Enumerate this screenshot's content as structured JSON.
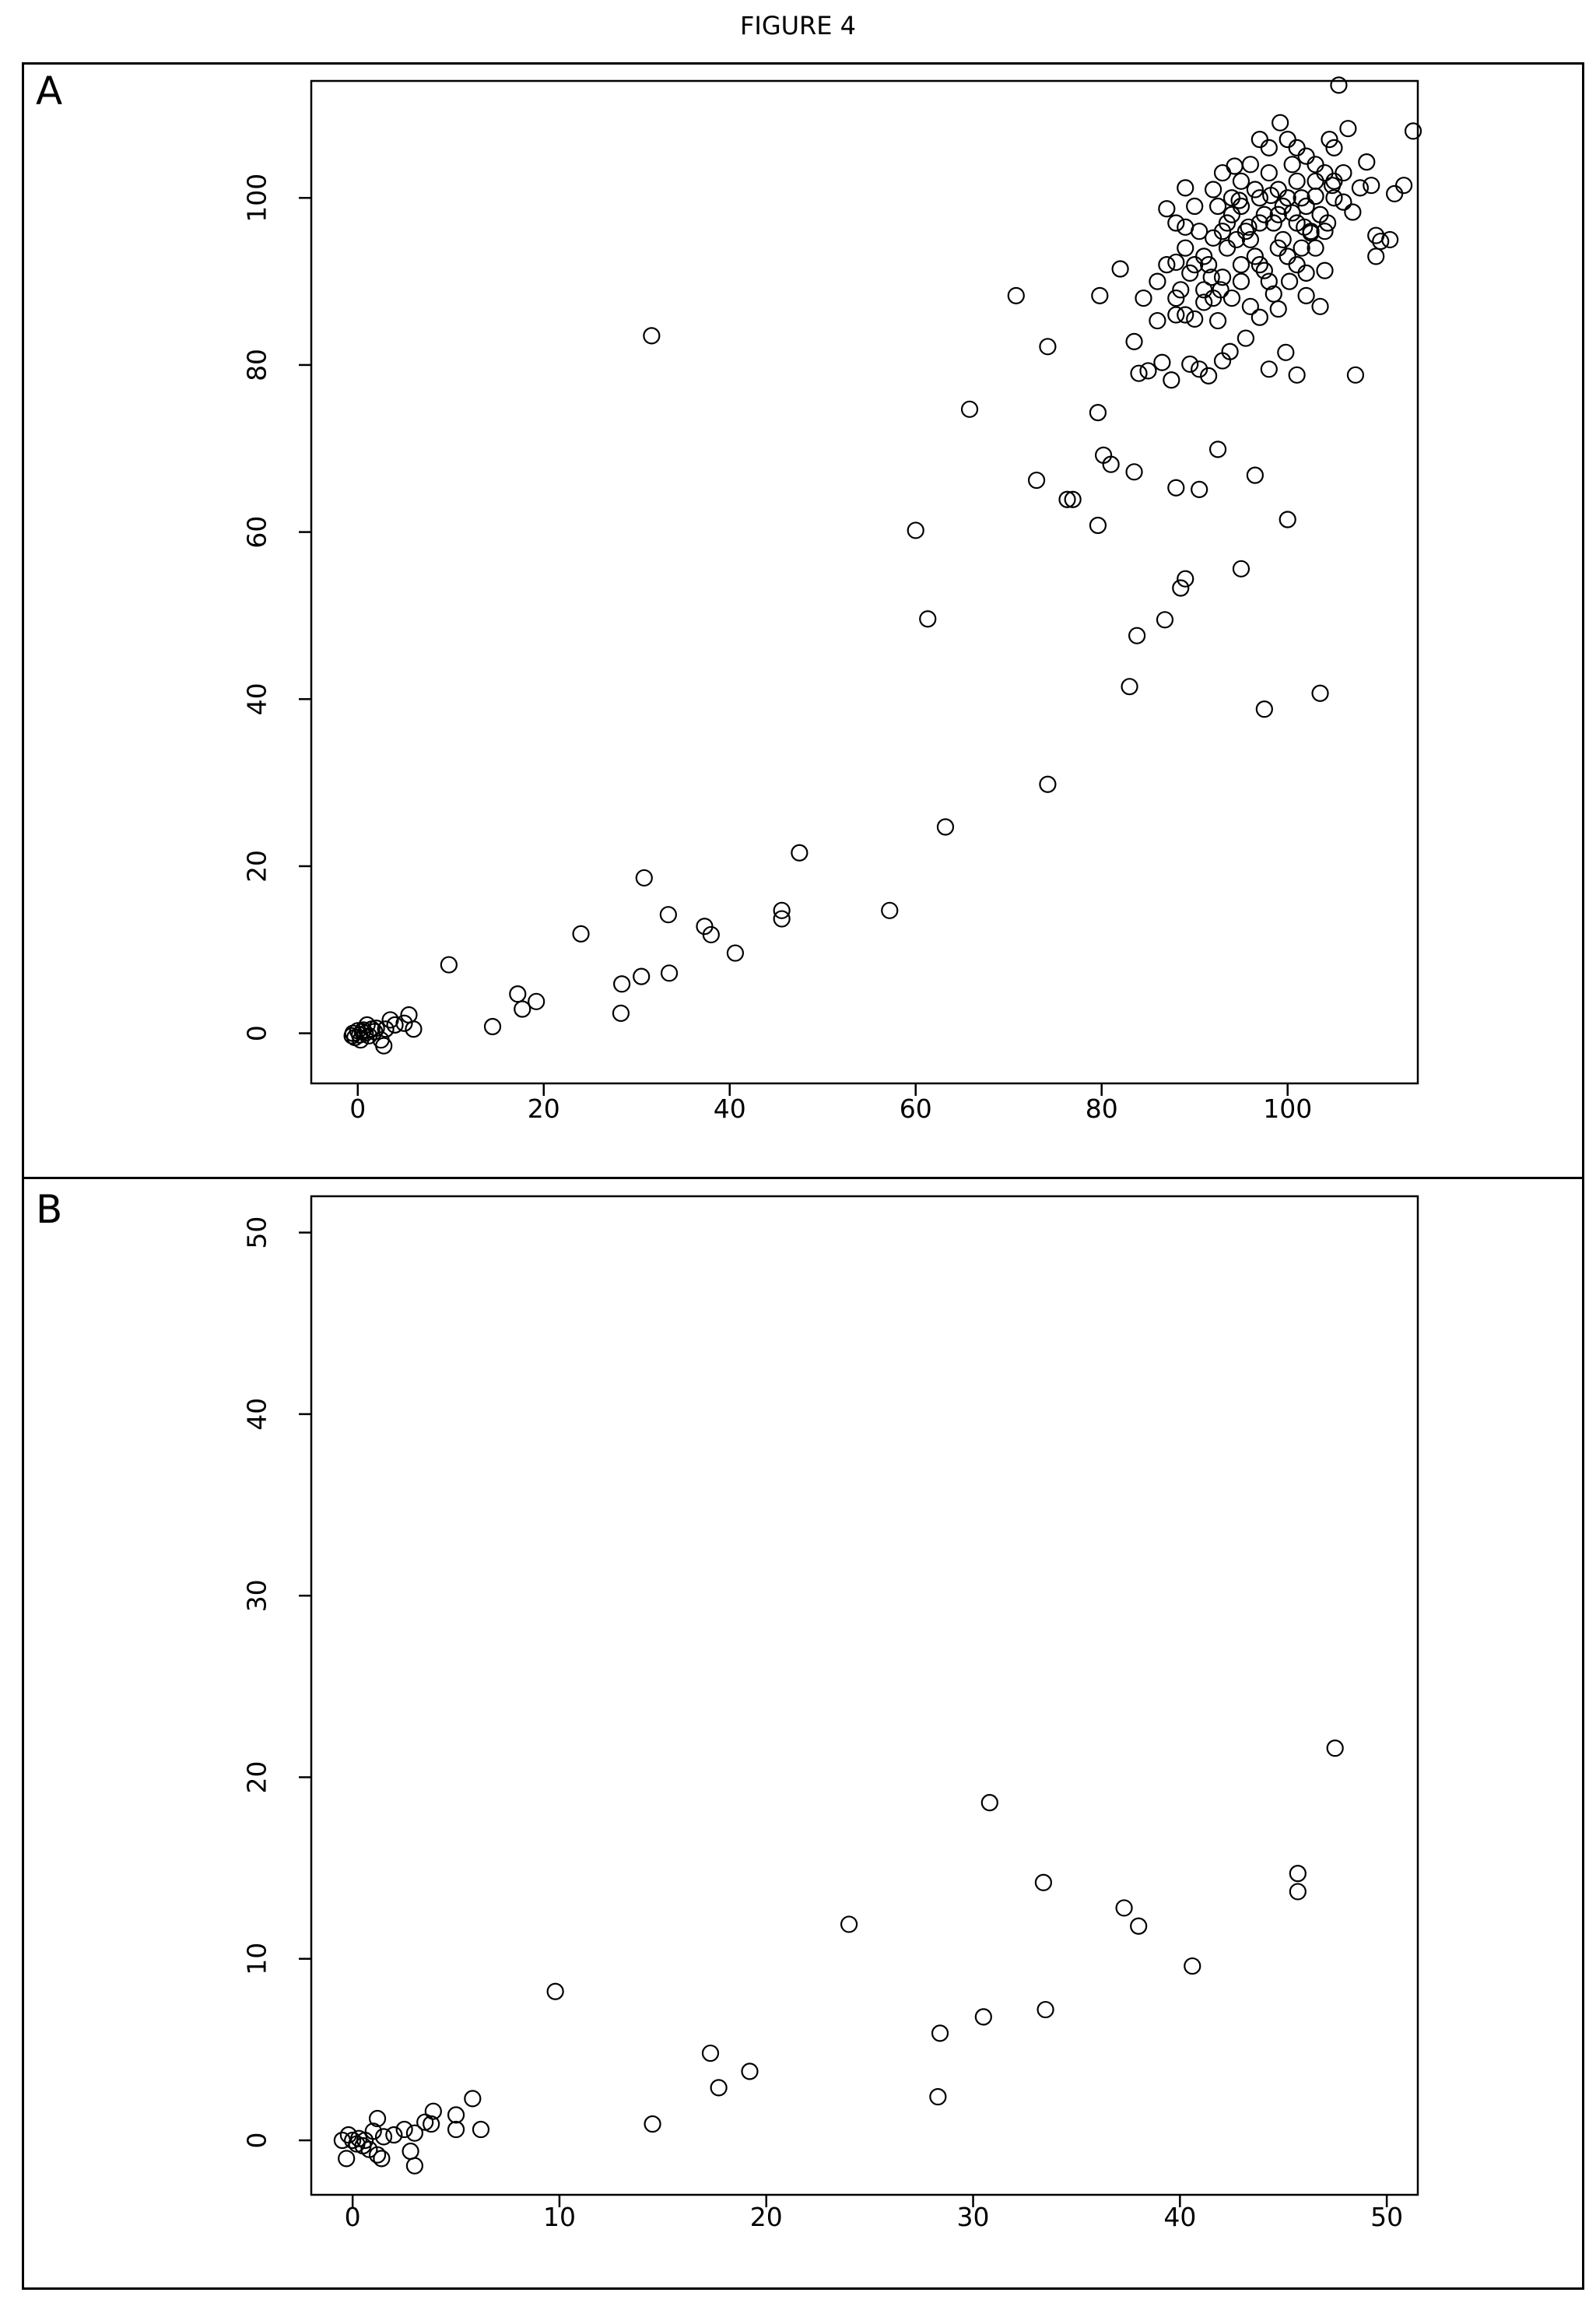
{
  "figure_title": "FIGURE 4",
  "panels": [
    {
      "label": "A"
    },
    {
      "label": "B"
    }
  ],
  "chart_data": [
    {
      "type": "scatter",
      "title": "",
      "xlabel": "",
      "ylabel": "",
      "xlim": [
        -5,
        114
      ],
      "ylim": [
        -6,
        114
      ],
      "xticks": [
        0,
        20,
        40,
        60,
        80,
        100
      ],
      "yticks": [
        0,
        20,
        40,
        60,
        80,
        100
      ],
      "grid": false,
      "points": [
        [
          -0.5,
          0
        ],
        [
          0,
          0.3
        ],
        [
          0.2,
          -0.2
        ],
        [
          -0.3,
          -0.5
        ],
        [
          0.5,
          0.2
        ],
        [
          0.8,
          0
        ],
        [
          1,
          1
        ],
        [
          1.2,
          -0.3
        ],
        [
          1.5,
          0.5
        ],
        [
          0.3,
          -0.8
        ],
        [
          -0.6,
          -0.3
        ],
        [
          2,
          0.6
        ],
        [
          2.5,
          -0.8
        ],
        [
          2.8,
          -1.5
        ],
        [
          3,
          0.5
        ],
        [
          3.5,
          1.6
        ],
        [
          4,
          1
        ],
        [
          5,
          1.2
        ],
        [
          5.5,
          2.2
        ],
        [
          6,
          0.5
        ],
        [
          0.6,
          0.4
        ],
        [
          1.8,
          0.2
        ],
        [
          9.8,
          8.2
        ],
        [
          14.5,
          0.8
        ],
        [
          17.2,
          4.7
        ],
        [
          17.7,
          2.9
        ],
        [
          19.2,
          3.8
        ],
        [
          24,
          11.9
        ],
        [
          28.4,
          5.9
        ],
        [
          28.3,
          2.4
        ],
        [
          30.5,
          6.8
        ],
        [
          30.8,
          18.6
        ],
        [
          33.4,
          14.2
        ],
        [
          33.5,
          7.2
        ],
        [
          37.3,
          12.8
        ],
        [
          38,
          11.8
        ],
        [
          40.6,
          9.6
        ],
        [
          45.6,
          14.7
        ],
        [
          45.6,
          13.7
        ],
        [
          47.5,
          21.6
        ],
        [
          31.6,
          83.5
        ],
        [
          57.2,
          14.7
        ],
        [
          60,
          60.2
        ],
        [
          61.3,
          49.6
        ],
        [
          63.2,
          24.7
        ],
        [
          65.8,
          74.7
        ],
        [
          70.8,
          88.3
        ],
        [
          73,
          66.2
        ],
        [
          74.2,
          82.2
        ],
        [
          74.2,
          29.8
        ],
        [
          76.3,
          63.9
        ],
        [
          76.9,
          63.9
        ],
        [
          79.6,
          74.3
        ],
        [
          79.6,
          60.8
        ],
        [
          79.8,
          88.3
        ],
        [
          80.2,
          69.2
        ],
        [
          81,
          68.1
        ],
        [
          82,
          91.5
        ],
        [
          83,
          41.5
        ],
        [
          83.5,
          67.2
        ],
        [
          83.8,
          47.6
        ],
        [
          86.8,
          49.5
        ],
        [
          88,
          65.3
        ],
        [
          88.5,
          53.3
        ],
        [
          89,
          54.4
        ],
        [
          90.5,
          65.1
        ],
        [
          92.5,
          69.9
        ],
        [
          95,
          55.6
        ],
        [
          96.5,
          66.8
        ],
        [
          97.5,
          38.8
        ],
        [
          100,
          61.5
        ],
        [
          103.5,
          40.7
        ],
        [
          83.5,
          82.8
        ],
        [
          84,
          79
        ],
        [
          84.5,
          88
        ],
        [
          85,
          79.3
        ],
        [
          86,
          85.3
        ],
        [
          86.5,
          80.3
        ],
        [
          87,
          98.7
        ],
        [
          87.5,
          78.2
        ],
        [
          88,
          92.3
        ],
        [
          88,
          86
        ],
        [
          88.5,
          89
        ],
        [
          89,
          101.2
        ],
        [
          89,
          96.5
        ],
        [
          89.5,
          80.1
        ],
        [
          90,
          85.5
        ],
        [
          90.5,
          79.5
        ],
        [
          91,
          87.5
        ],
        [
          91.5,
          78.7
        ],
        [
          91.8,
          90.5
        ],
        [
          92,
          95.2
        ],
        [
          92.5,
          85.3
        ],
        [
          92.8,
          89
        ],
        [
          93,
          80.5
        ],
        [
          93.5,
          97
        ],
        [
          93.8,
          81.6
        ],
        [
          94,
          88
        ],
        [
          94.3,
          103.8
        ],
        [
          94.8,
          99.7
        ],
        [
          95,
          92
        ],
        [
          95.5,
          83.2
        ],
        [
          95.8,
          96.5
        ],
        [
          96,
          87
        ],
        [
          96.5,
          93
        ],
        [
          97,
          85.7
        ],
        [
          97.5,
          91.3
        ],
        [
          98,
          79.5
        ],
        [
          98.2,
          100.3
        ],
        [
          98.5,
          88.5
        ],
        [
          99,
          86.7
        ],
        [
          99.2,
          109
        ],
        [
          99.5,
          95
        ],
        [
          99.8,
          81.5
        ],
        [
          100.2,
          90
        ],
        [
          100.5,
          98.2
        ],
        [
          101,
          78.8
        ],
        [
          101.5,
          94
        ],
        [
          101.8,
          96.5
        ],
        [
          102,
          88.3
        ],
        [
          102.5,
          95.8
        ],
        [
          103,
          100.2
        ],
        [
          103.5,
          87
        ],
        [
          104,
          91.3
        ],
        [
          104.3,
          97
        ],
        [
          104.8,
          101.5
        ],
        [
          105,
          106
        ],
        [
          105.5,
          113.5
        ],
        [
          106,
          99.5
        ],
        [
          106.5,
          108.3
        ],
        [
          107,
          98.3
        ],
        [
          107.3,
          78.8
        ],
        [
          107.8,
          101.2
        ],
        [
          108.5,
          104.3
        ],
        [
          109,
          101.5
        ],
        [
          109.5,
          95.5
        ],
        [
          109.5,
          93
        ],
        [
          110,
          94.8
        ],
        [
          111,
          95
        ],
        [
          111.5,
          100.5
        ],
        [
          112.5,
          101.5
        ],
        [
          113.5,
          108
        ],
        [
          87,
          92
        ],
        [
          88,
          97
        ],
        [
          89,
          94
        ],
        [
          90,
          99
        ],
        [
          91,
          93
        ],
        [
          92,
          101
        ],
        [
          93,
          96
        ],
        [
          94,
          98
        ],
        [
          95,
          102
        ],
        [
          96,
          95
        ],
        [
          97,
          97
        ],
        [
          98,
          103
        ],
        [
          99,
          98
        ],
        [
          100,
          100
        ],
        [
          101,
          97
        ],
        [
          102,
          99
        ],
        [
          103,
          102
        ],
        [
          104,
          96
        ],
        [
          105,
          100
        ],
        [
          106,
          103
        ],
        [
          90.5,
          96
        ],
        [
          92.5,
          99
        ],
        [
          94.5,
          95
        ],
        [
          96.5,
          101
        ],
        [
          98.5,
          97
        ],
        [
          100.5,
          104
        ],
        [
          102.5,
          96
        ],
        [
          104.5,
          107
        ],
        [
          89.5,
          91
        ],
        [
          91.5,
          92
        ],
        [
          93.5,
          94
        ],
        [
          95.5,
          96
        ],
        [
          97.5,
          98
        ],
        [
          99.5,
          99
        ],
        [
          101.5,
          100
        ],
        [
          103.5,
          98
        ],
        [
          96,
          104
        ],
        [
          98,
          106
        ],
        [
          100,
          107
        ],
        [
          102,
          105
        ],
        [
          94,
          100
        ],
        [
          92,
          88
        ],
        [
          90,
          92
        ],
        [
          88,
          88
        ],
        [
          86,
          90
        ],
        [
          97,
          92
        ],
        [
          99,
          94
        ],
        [
          101,
          92
        ],
        [
          103,
          94
        ],
        [
          95,
          90
        ],
        [
          93,
          90.5
        ],
        [
          91,
          89
        ],
        [
          89,
          86
        ],
        [
          98,
          90
        ],
        [
          100,
          93
        ],
        [
          102,
          91
        ],
        [
          95,
          99
        ],
        [
          97,
          100
        ],
        [
          99,
          101
        ],
        [
          101,
          102
        ],
        [
          103,
          104
        ],
        [
          105,
          102
        ],
        [
          93,
          103
        ],
        [
          97,
          107
        ],
        [
          101,
          106
        ],
        [
          104,
          103
        ]
      ]
    },
    {
      "type": "scatter",
      "title": "",
      "xlabel": "",
      "ylabel": "",
      "xlim": [
        -2,
        51.5
      ],
      "ylim": [
        -3,
        52
      ],
      "xticks": [
        0,
        10,
        20,
        30,
        40,
        50
      ],
      "yticks": [
        0,
        10,
        20,
        30,
        40,
        50
      ],
      "grid": false,
      "points": [
        [
          -0.5,
          0
        ],
        [
          -0.3,
          -1
        ],
        [
          -0.2,
          0.3
        ],
        [
          0,
          0
        ],
        [
          0.2,
          -0.2
        ],
        [
          0.3,
          0.1
        ],
        [
          0.5,
          -0.3
        ],
        [
          0.6,
          0
        ],
        [
          0.8,
          -0.5
        ],
        [
          1,
          0.5
        ],
        [
          1.2,
          -0.8
        ],
        [
          1.2,
          1.2
        ],
        [
          1.4,
          -1
        ],
        [
          1.5,
          0.2
        ],
        [
          2,
          0.3
        ],
        [
          2.5,
          0.6
        ],
        [
          2.8,
          -0.6
        ],
        [
          3,
          -1.4
        ],
        [
          3,
          0.4
        ],
        [
          3.5,
          1
        ],
        [
          3.8,
          0.9
        ],
        [
          3.9,
          1.6
        ],
        [
          5,
          1.4
        ],
        [
          5,
          0.6
        ],
        [
          5.8,
          2.3
        ],
        [
          6.2,
          0.6
        ],
        [
          9.8,
          8.2
        ],
        [
          14.5,
          0.9
        ],
        [
          17.3,
          4.8
        ],
        [
          17.7,
          2.9
        ],
        [
          19.2,
          3.8
        ],
        [
          24,
          11.9
        ],
        [
          28.4,
          5.9
        ],
        [
          28.3,
          2.4
        ],
        [
          30.5,
          6.8
        ],
        [
          30.8,
          18.6
        ],
        [
          33.4,
          14.2
        ],
        [
          33.5,
          7.2
        ],
        [
          37.3,
          12.8
        ],
        [
          38,
          11.8
        ],
        [
          40.6,
          9.6
        ],
        [
          45.7,
          14.7
        ],
        [
          45.7,
          13.7
        ],
        [
          47.5,
          21.6
        ]
      ]
    }
  ]
}
